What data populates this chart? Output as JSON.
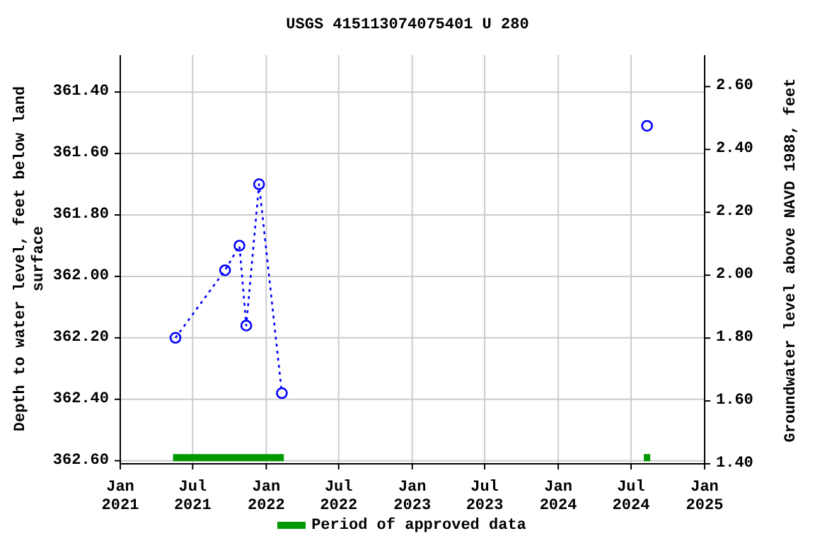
{
  "chart_data": {
    "type": "line",
    "title": "USGS 415113074075401 U 280",
    "ylabel": "Depth to water level, feet below land surface",
    "y2label": "Groundwater level above NAVD 1988, feet",
    "series": [
      {
        "color": "#0000ff",
        "line_style": "dotted",
        "marker": "circle",
        "x": [
          "2021-05-19",
          "2021-09-20",
          "2021-10-26",
          "2021-11-12",
          "2021-12-14",
          "2022-02-09"
        ],
        "values": [
          362.2,
          361.98,
          361.9,
          362.16,
          361.7,
          362.38
        ]
      },
      {
        "color": "#0000ff",
        "line_style": "dotted",
        "marker": "circle",
        "x": [
          "2024-08-10"
        ],
        "values": [
          361.51
        ]
      },
      {
        "name": "Period of approved data",
        "color": "#009900",
        "line_style": "solid",
        "marker": "none",
        "x": [
          "2021-05-13",
          "2022-02-14",
          "2022-02-15",
          "2024-08-02",
          "2024-08-18"
        ],
        "values": [
          362.59,
          362.59,
          null,
          362.59,
          362.59
        ]
      }
    ],
    "xlim": [
      "2021-01-01",
      "2025-01-01"
    ],
    "xticks": [
      {
        "value": "2021-01-01",
        "label": "Jan\n2021"
      },
      {
        "value": "2021-07-01",
        "label": "Jul\n2021"
      },
      {
        "value": "2022-01-01",
        "label": "Jan\n2022"
      },
      {
        "value": "2022-07-01",
        "label": "Jul\n2022"
      },
      {
        "value": "2023-01-01",
        "label": "Jan\n2023"
      },
      {
        "value": "2023-07-01",
        "label": "Jul\n2023"
      },
      {
        "value": "2024-01-01",
        "label": "Jan\n2024"
      },
      {
        "value": "2024-07-01",
        "label": "Jul\n2024"
      },
      {
        "value": "2025-01-01",
        "label": "Jan\n2025"
      }
    ],
    "ylim": [
      362.61,
      361.28
    ],
    "yticks": [
      {
        "value": 361.4,
        "label": "361.40"
      },
      {
        "value": 361.6,
        "label": "361.60"
      },
      {
        "value": 361.8,
        "label": "361.80"
      },
      {
        "value": 362.0,
        "label": "362.00"
      },
      {
        "value": 362.2,
        "label": "362.20"
      },
      {
        "value": 362.4,
        "label": "362.40"
      },
      {
        "value": 362.6,
        "label": "362.60"
      }
    ],
    "y2lim": [
      1.4,
      2.7
    ],
    "y2ticks": [
      {
        "value": 1.4,
        "label": "1.40"
      },
      {
        "value": 1.6,
        "label": "1.60"
      },
      {
        "value": 1.8,
        "label": "1.80"
      },
      {
        "value": 2.0,
        "label": "2.00"
      },
      {
        "value": 2.2,
        "label": "2.20"
      },
      {
        "value": 2.4,
        "label": "2.40"
      },
      {
        "value": 2.6,
        "label": "2.60"
      }
    ],
    "grid": true,
    "legend": "bottom"
  }
}
